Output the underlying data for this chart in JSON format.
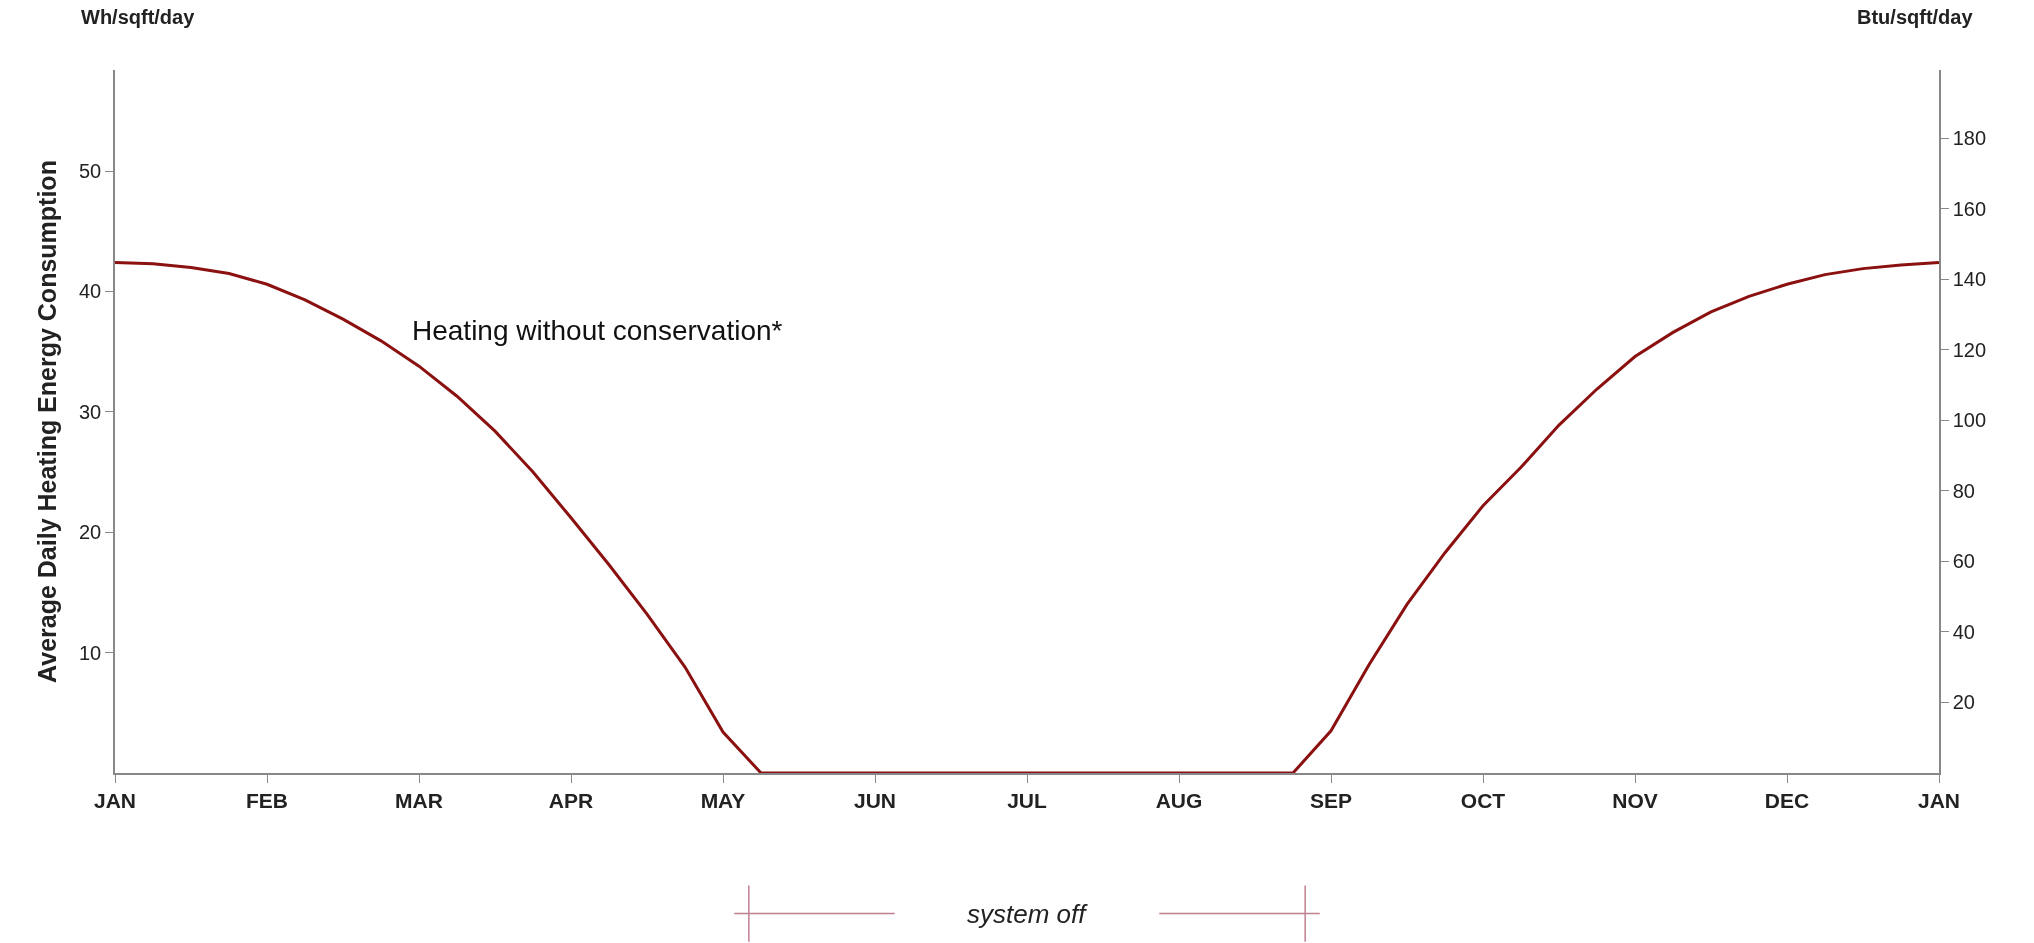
{
  "chart_data": {
    "type": "line",
    "ylabel": "Average Daily Heating Energy Consumption",
    "annotations": [
      "Wh/sqft/day",
      "Btu/sqft/day",
      "system off"
    ],
    "categories": [
      "JAN",
      null,
      null,
      null,
      "FEB",
      null,
      null,
      null,
      "MAR",
      null,
      null,
      null,
      "APR",
      null,
      null,
      null,
      "MAY",
      null,
      null,
      null,
      "JUN",
      null,
      null,
      null,
      "JUL",
      null,
      null,
      null,
      "AUG",
      null,
      null,
      null,
      "SEP",
      null,
      null,
      null,
      "OCT",
      null,
      null,
      null,
      "NOV",
      null,
      null,
      null,
      "DEC",
      null,
      null,
      null,
      "JAN"
    ],
    "series": [
      {
        "name": "Heating without conservation*",
        "color": "#8b1010",
        "values": [
          42.4,
          42.3,
          42.0,
          41.5,
          40.6,
          39.3,
          37.7,
          35.9,
          33.8,
          31.3,
          28.4,
          25.0,
          21.2,
          17.3,
          13.2,
          8.8,
          3.4,
          0,
          0,
          0,
          0,
          0,
          0,
          0,
          0,
          0,
          0,
          0,
          0,
          0,
          0,
          0,
          3.5,
          9.0,
          14.0,
          18.3,
          22.2,
          25.4,
          28.9,
          31.9,
          34.6,
          36.6,
          38.3,
          39.6,
          40.6,
          41.4,
          41.9,
          42.2,
          42.4
        ]
      }
    ],
    "ylim": [
      0,
      58.4
    ],
    "yticks": [
      10,
      20,
      30,
      40,
      50
    ],
    "y2lim": [
      0,
      199.3
    ],
    "y2ticks": [
      20,
      40,
      60,
      80,
      100,
      120,
      140,
      160,
      180
    ],
    "legend": false,
    "marker": "none",
    "line_style": "solid"
  }
}
